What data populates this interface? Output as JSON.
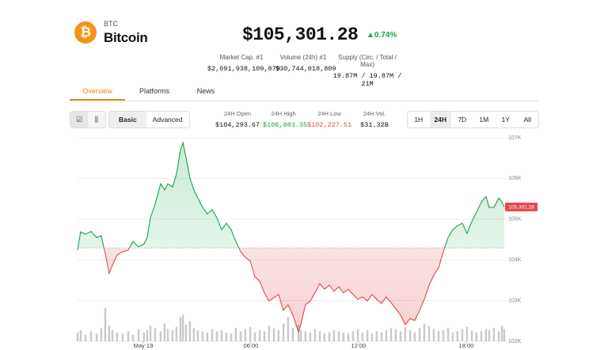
{
  "header": {
    "symbol": "BTC",
    "name": "Bitcoin",
    "price": "$105,301.28",
    "change": "0.74%"
  },
  "stats": [
    {
      "label": "Market Cap. #1",
      "value": "$2,091,938,109,879"
    },
    {
      "label": "Volume (24h) #1",
      "value": "$30,744,018,809"
    },
    {
      "label": "Supply (Circ. / Total / Max)",
      "value": "19.87M / 19.87M / 21M"
    }
  ],
  "tabs": [
    "Overview",
    "Platforms",
    "News"
  ],
  "view_modes": [
    "Basic",
    "Advanced"
  ],
  "day_stats": [
    {
      "label": "24H Open",
      "value": "$104,293.67"
    },
    {
      "label": "24H High",
      "value": "$106,883.35"
    },
    {
      "label": "24H Low",
      "value": "$102,227.51"
    },
    {
      "label": "24H Vol.",
      "value": "$31.32B"
    }
  ],
  "ranges": [
    "1H",
    "24H",
    "7D",
    "1M",
    "1Y",
    "All"
  ],
  "chart_data": {
    "type": "line",
    "color": "#16a34a",
    "below_color": "#e5484d",
    "baseline": 104293.67,
    "price_label": "105,301.28",
    "x": [
      -3.66,
      -3.49,
      -3.22,
      -2.91,
      -2.6,
      -2.34,
      -2.12,
      -1.9,
      -1.72,
      -1.46,
      -1.15,
      -0.84,
      -0.57,
      -0.26,
      0.04,
      0.22,
      0.4,
      0.66,
      0.97,
      1.19,
      1.37,
      1.63,
      1.85,
      2.07,
      2.21,
      2.38,
      2.6,
      2.82,
      3.04,
      3.31,
      3.57,
      3.84,
      4.1,
      4.37,
      4.63,
      4.9,
      5.16,
      5.43,
      5.69,
      5.96,
      6.22,
      6.49,
      6.75,
      7.01,
      7.28,
      7.54,
      7.81,
      8.07,
      8.34,
      8.65,
      8.78,
      9.04,
      9.31,
      9.57,
      9.84,
      10.1,
      10.37,
      10.63,
      10.9,
      11.16,
      11.43,
      11.69,
      11.96,
      12.22,
      12.49,
      12.75,
      13.01,
      13.28,
      13.54,
      13.81,
      14.07,
      14.34,
      14.6,
      14.87,
      15.13,
      15.4,
      15.66,
      15.93,
      16.19,
      16.46,
      16.72,
      16.99,
      17.25,
      17.51,
      17.78,
      18.04,
      18.31,
      18.57,
      18.84,
      19.1,
      19.28,
      19.54,
      19.81,
      19.99,
      20.12
    ],
    "values": [
      104240,
      104690,
      104630,
      104700,
      104550,
      104590,
      104160,
      103670,
      103870,
      104120,
      104200,
      104240,
      104450,
      104320,
      104390,
      104550,
      105040,
      105370,
      105870,
      105720,
      105870,
      105790,
      106100,
      106690,
      106880,
      106530,
      106010,
      105720,
      105520,
      105290,
      105130,
      105230,
      105040,
      104740,
      104900,
      104740,
      104450,
      104200,
      104060,
      103970,
      103580,
      103480,
      103190,
      102990,
      103070,
      103150,
      102760,
      102900,
      102640,
      102230,
      102410,
      102900,
      102990,
      103190,
      103420,
      103280,
      103380,
      103230,
      103340,
      103190,
      103280,
      103150,
      103030,
      103090,
      102990,
      103150,
      103030,
      102930,
      103090,
      102950,
      102800,
      102640,
      102410,
      102560,
      102510,
      102760,
      103030,
      103380,
      103620,
      103810,
      104200,
      104550,
      104740,
      104840,
      104900,
      104650,
      104940,
      105170,
      105420,
      105560,
      105290,
      105290,
      105520,
      105420,
      105301.28
    ],
    "volume": {
      "color": "#c9c9c9",
      "values": [
        8,
        10,
        6,
        9,
        7,
        12,
        30,
        14,
        10,
        8,
        7,
        9,
        6,
        11,
        8,
        10,
        14,
        12,
        9,
        16,
        11,
        10,
        13,
        22,
        24,
        15,
        18,
        12,
        10,
        9,
        8,
        11,
        9,
        10,
        8,
        7,
        12,
        9,
        11,
        13,
        8,
        10,
        9,
        14,
        12,
        10,
        16,
        22,
        12,
        15,
        10,
        9,
        8,
        11,
        9,
        7,
        8,
        10,
        9,
        8,
        7,
        9,
        11,
        8,
        10,
        7,
        9,
        8,
        10,
        12,
        11,
        9,
        13,
        10,
        8,
        12,
        16,
        14,
        11,
        9,
        10,
        12,
        8,
        9,
        11,
        13,
        10,
        8,
        9,
        11,
        10,
        12,
        9,
        14,
        11
      ]
    },
    "xlim": [
      -3.66,
      20.12
    ],
    "xticks": [
      {
        "value": 0,
        "label": "May 19"
      },
      {
        "value": 6,
        "label": "06:00"
      },
      {
        "value": 12,
        "label": "12:00"
      },
      {
        "value": 18,
        "label": "18:00"
      }
    ],
    "ylim": [
      102000,
      107000
    ],
    "yticks": [
      {
        "value": 102000,
        "label": "102K"
      },
      {
        "value": 103000,
        "label": "103K"
      },
      {
        "value": 104000,
        "label": "104K"
      },
      {
        "value": 105000,
        "label": "105K"
      },
      {
        "value": 106000,
        "label": "106K"
      },
      {
        "value": 107000,
        "label": "107K"
      }
    ],
    "grid": true
  }
}
